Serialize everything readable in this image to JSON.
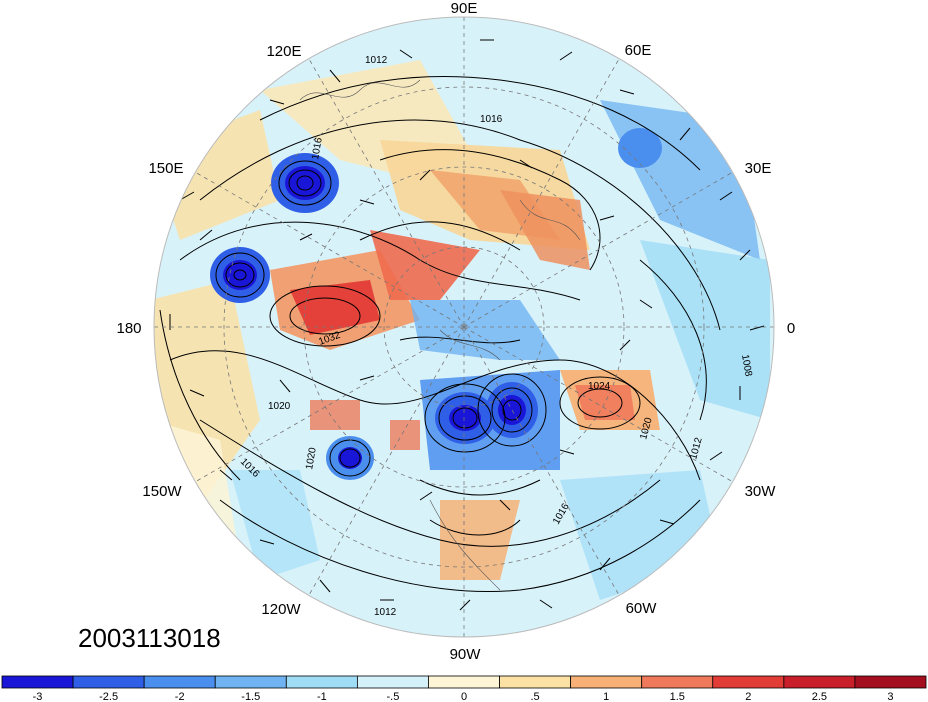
{
  "timestamp": "2003113018",
  "longitude_labels": {
    "lon_90e": "90E",
    "lon_60e": "60E",
    "lon_30e": "30E",
    "lon_0": "0",
    "lon_30w": "30W",
    "lon_60w": "60W",
    "lon_90w": "90W",
    "lon_120w": "120W",
    "lon_150w": "150W",
    "lon_180": "180",
    "lon_150e": "150E",
    "lon_120e": "120E"
  },
  "isobar_labels": [
    "1012",
    "1016",
    "1016",
    "1024",
    "1020",
    "1020",
    "1020",
    "1016",
    "1012",
    "1012",
    "1016",
    "1012",
    "1032",
    "1008"
  ],
  "colorbar": {
    "colors": [
      "#1a16d8",
      "#2f5fe6",
      "#4b8fee",
      "#6fb3f2",
      "#9fdcf6",
      "#d4f1fa",
      "#fdf5d6",
      "#fbe1a4",
      "#f7b176",
      "#ef7a5b",
      "#e23c36",
      "#c81f2a",
      "#a30f1f"
    ],
    "ticks": [
      "-3",
      "-2.5",
      "-2",
      "-1.5",
      "-1",
      "-.5",
      "0",
      ".5",
      "1",
      "1.5",
      "2",
      "2.5",
      "3"
    ]
  },
  "colors": {
    "ocean_background": "#c9ecf8",
    "contour_line": "#000000"
  }
}
